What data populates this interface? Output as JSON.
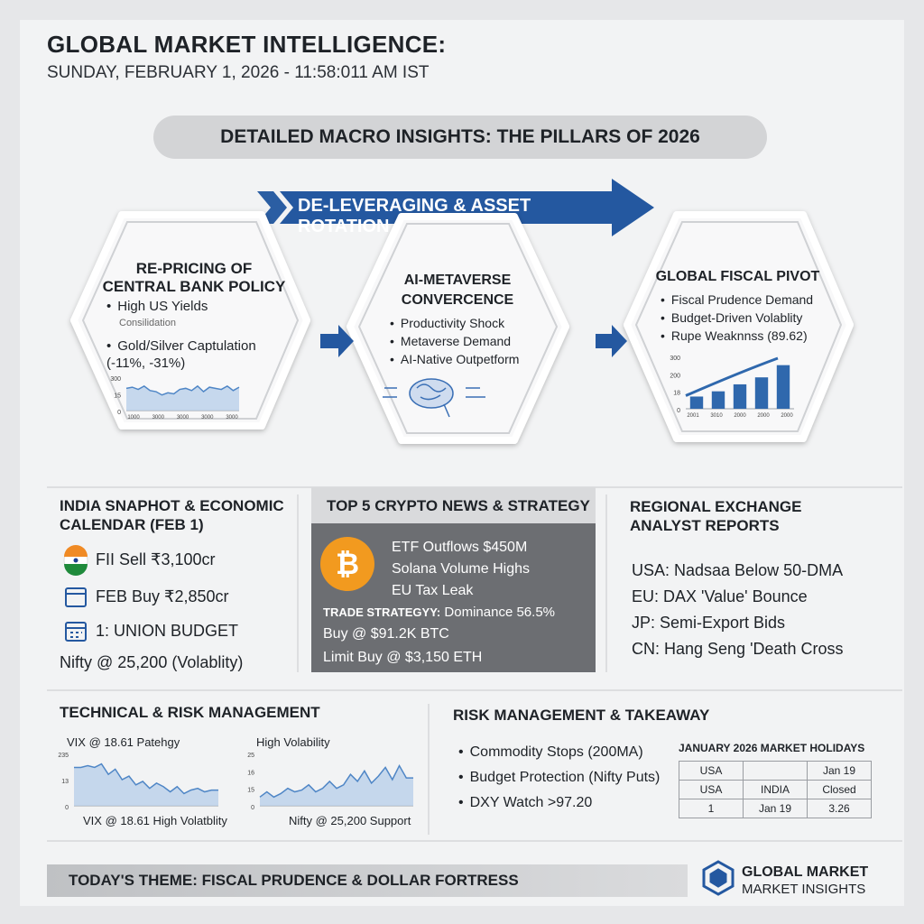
{
  "header": {
    "title": "GLOBAL MARKET INTELLIGENCE:",
    "subtitle": "SUNDAY, FEBRUARY 1, 2026 - 11:58:011 AM IST"
  },
  "banner": "DETAILED MACRO INSIGHTS: THE PILLARS OF 2026",
  "arrow_label": "DE-LEVERAGING & ASSET ROTATION",
  "pillars": [
    {
      "title": "RE-PRICING OF CENTRAL BANK POLICY",
      "bullets": [
        "High US Yields",
        "Gold/Silver Captulation (-11%, -31%)"
      ],
      "note": "Consilidation",
      "chart": {
        "type": "area",
        "values": [
          20,
          21,
          19,
          22,
          18,
          17,
          14,
          16,
          15,
          19,
          20,
          18,
          22,
          17,
          21,
          20,
          19,
          22,
          18,
          21
        ],
        "ylim": [
          0,
          30
        ],
        "y_labels": [
          "300",
          "15",
          "0"
        ],
        "x_labels": [
          "1000",
          "3000",
          "3000",
          "3000",
          "3000"
        ]
      }
    },
    {
      "title": "AI-METAVERSE CONVERCENCE",
      "bullets": [
        "Productivity Shock",
        "Metaverse Demand",
        "AI-Native Outpetform"
      ]
    },
    {
      "title": "GLOBAL FISCAL PIVOT",
      "bullets": [
        "Fiscal Prudence Demand",
        "Budget-Driven Volablity",
        "Rupe Weaknnss (89.62)"
      ],
      "chart": {
        "type": "bar",
        "values": [
          7,
          10,
          14,
          18,
          25
        ],
        "ylim": [
          0,
          30
        ],
        "y_labels": [
          "300",
          "200",
          "18",
          "0"
        ],
        "x_labels": [
          "2001",
          "3010",
          "2000",
          "2000",
          "2000"
        ]
      }
    }
  ],
  "india": {
    "title": "INDIA SNAPHOT & ECONOMIC CALENDAR (FEB 1)",
    "items": [
      "FII Sell ₹3,100cr",
      "FEB Buy ₹2,850cr",
      "1: UNION BUDGET",
      "Nifty @ 25,200 (Volablity)"
    ]
  },
  "crypto": {
    "title": "TOP 5 CRYPTO NEWS & STRATEGY",
    "news": [
      "ETF Outflows $450M",
      "Solana Volume Highs",
      "EU Tax Leak"
    ],
    "strategy_label": "TRADE STRATEGYY:",
    "strategy": [
      "Dominance 56.5%",
      "Buy @ $91.2K BTC",
      "Limit Buy @ $3,150 ETH"
    ]
  },
  "regional": {
    "title": "REGIONAL EXCHANGE ANALYST REPORTS",
    "items": [
      "USA: Nadsaa Below 50-DMA",
      "EU: DAX 'Value' Bounce",
      "JP: Semi-Export Bids",
      "CN: Hang Seng 'Death Cross"
    ]
  },
  "technical": {
    "title": "TECHNICAL & RISK MANAGEMENT",
    "charts": [
      {
        "type": "area",
        "top_label": "VIX @ 18.61 Patehgy",
        "bottom_label": "VIX @ 18.61 High Volatblity",
        "values": [
          22,
          22,
          23,
          22,
          24,
          18,
          21,
          15,
          17,
          12,
          14,
          10,
          13,
          11,
          8,
          11,
          7,
          9,
          10,
          8,
          9,
          9
        ],
        "ylim": [
          0,
          30
        ],
        "y_labels": [
          "235",
          "13",
          "0"
        ]
      },
      {
        "type": "area",
        "top_label": "High Volability",
        "bottom_label": "Nifty @ 25,200 Support",
        "values": [
          5,
          8,
          5,
          7,
          10,
          8,
          9,
          12,
          8,
          10,
          14,
          10,
          12,
          18,
          14,
          20,
          13,
          17,
          22,
          15,
          23,
          16,
          16
        ],
        "ylim": [
          0,
          30
        ],
        "y_labels": [
          "25",
          "16",
          "15",
          "0"
        ]
      }
    ]
  },
  "risk": {
    "title": "RISK MANAGEMENT & TAKEAWAY",
    "bullets": [
      "Commodity Stops (200MA)",
      "Budget Protection (Nifty Puts)",
      "DXY Watch >97.20"
    ]
  },
  "holidays": {
    "title": "JANUARY 2026 MARKET HOLIDAYS",
    "rows": [
      [
        "USA",
        null,
        "Jan 19"
      ],
      [
        "USA",
        "INDIA",
        "Closed"
      ],
      [
        "1",
        "Jan 19",
        "3.26"
      ]
    ]
  },
  "footer": {
    "theme": "TODAY'S THEME: FISCAL PRUDENCE & DOLLAR FORTRESS",
    "logo_line1": "GLOBAL MARKET",
    "logo_line2": "MARKET INSIGHTS"
  }
}
